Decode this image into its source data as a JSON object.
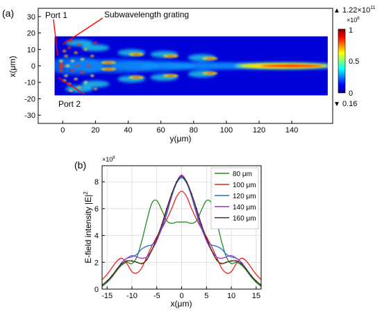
{
  "panel_a": {
    "label": "(a)",
    "annotations": {
      "port1": "Port 1",
      "port2": "Port 2",
      "grating": "Subwavelength grating"
    },
    "colorbar": {
      "max_text": "1.22×10",
      "max_exp": "11",
      "multiplier_text": "×10",
      "multiplier_exp": "8",
      "tick_labels": [
        "1",
        "0.5",
        "0"
      ],
      "min_text": "0.16",
      "up_arrow": "▲",
      "down_arrow": "▼"
    }
  },
  "panel_b": {
    "label": "(b)",
    "multiplier_text": "×10",
    "multiplier_exp": "8"
  },
  "chart_data": [
    {
      "type": "heatmap",
      "xlabel": "y(μm)",
      "ylabel": "x(μm)",
      "xlim": [
        -15,
        165
      ],
      "ylim": [
        -35,
        35
      ],
      "x_ticks": [
        0,
        20,
        40,
        60,
        80,
        100,
        120,
        140
      ],
      "y_ticks": [
        -30,
        -20,
        -10,
        0,
        10,
        20,
        30
      ],
      "field_extent": {
        "y": [
          -5,
          162
        ],
        "x": [
          -18,
          18
        ]
      },
      "colormap": "jet",
      "colorbar_range": [
        0,
        1
      ],
      "colorbar_ticks": [
        1,
        0.5,
        0
      ]
    },
    {
      "type": "line",
      "xlabel": "x(μm)",
      "ylabel": "E-field intensity |E|",
      "ylabel_exp": "2",
      "xlim": [
        -16,
        16
      ],
      "ylim": [
        0,
        9.2
      ],
      "x_ticks": [
        -15,
        -10,
        -5,
        0,
        5,
        10,
        15
      ],
      "y_ticks": [
        0,
        2,
        4,
        6,
        8
      ],
      "grid": true,
      "legend_position": "top-right",
      "x": [
        -16,
        -15,
        -14,
        -13,
        -12,
        -11,
        -10,
        -9,
        -8,
        -7,
        -6,
        -5,
        -4,
        -3,
        -2,
        -1,
        0,
        1,
        2,
        3,
        4,
        5,
        6,
        7,
        8,
        9,
        10,
        11,
        12,
        13,
        14,
        15,
        16
      ],
      "series": [
        {
          "name": "80 μm",
          "color": "#228b22",
          "values": [
            0.2,
            0.5,
            0.9,
            1.4,
            1.8,
            2.0,
            1.9,
            2.4,
            3.6,
            5.1,
            6.4,
            6.6,
            5.9,
            5.1,
            4.9,
            5.0,
            5.0,
            5.0,
            4.9,
            5.1,
            5.9,
            6.6,
            6.4,
            5.1,
            3.6,
            2.4,
            1.9,
            2.0,
            1.8,
            1.4,
            0.9,
            0.5,
            0.2
          ]
        },
        {
          "name": "100 μm",
          "color": "#e8241a",
          "values": [
            0.7,
            1.1,
            1.6,
            2.1,
            2.3,
            1.9,
            1.3,
            1.2,
            1.6,
            2.4,
            3.2,
            3.9,
            4.5,
            5.2,
            6.0,
            6.9,
            7.3,
            6.9,
            6.0,
            5.2,
            4.5,
            3.9,
            3.2,
            2.4,
            1.6,
            1.2,
            1.3,
            1.9,
            2.3,
            2.1,
            1.6,
            1.1,
            0.7
          ]
        },
        {
          "name": "120 μm",
          "color": "#1f6fd6",
          "values": [
            0.3,
            0.6,
            1.0,
            1.5,
            2.0,
            2.3,
            2.4,
            2.6,
            3.0,
            3.2,
            3.3,
            3.7,
            4.5,
            5.6,
            6.9,
            7.9,
            8.3,
            7.9,
            6.9,
            5.6,
            4.5,
            3.7,
            3.3,
            3.2,
            3.0,
            2.6,
            2.4,
            2.3,
            2.0,
            1.5,
            1.0,
            0.6,
            0.3
          ]
        },
        {
          "name": "140 μm",
          "color": "#9932cc",
          "values": [
            0.3,
            0.6,
            1.0,
            1.5,
            2.0,
            2.3,
            2.5,
            2.4,
            2.3,
            2.4,
            2.9,
            3.6,
            4.6,
            5.8,
            7.0,
            8.0,
            8.5,
            8.0,
            7.0,
            5.8,
            4.6,
            3.6,
            2.9,
            2.4,
            2.3,
            2.4,
            2.5,
            2.3,
            2.0,
            1.5,
            1.0,
            0.6,
            0.3
          ]
        },
        {
          "name": "160 μm",
          "color": "#4a2a1a",
          "values": [
            0.3,
            0.6,
            1.0,
            1.5,
            1.9,
            2.1,
            2.1,
            2.0,
            1.9,
            2.2,
            2.9,
            3.8,
            4.8,
            6.0,
            7.1,
            8.0,
            8.4,
            8.0,
            7.1,
            6.0,
            4.8,
            3.8,
            2.9,
            2.2,
            1.9,
            2.0,
            2.1,
            2.1,
            1.9,
            1.5,
            1.0,
            0.6,
            0.3
          ]
        }
      ]
    }
  ]
}
